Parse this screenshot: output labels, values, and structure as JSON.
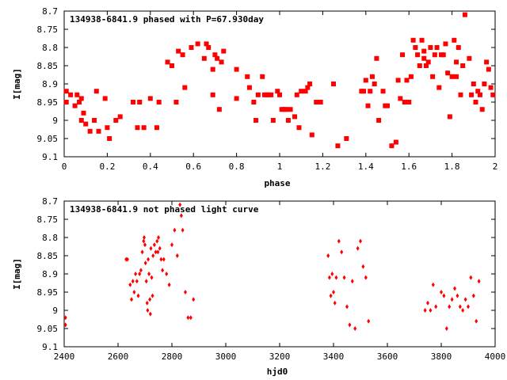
{
  "chart_data": [
    {
      "type": "scatter",
      "title": "134938-6841.9 phased with P=67.930day",
      "xlabel": "phase",
      "ylabel": "I[mag]",
      "xlim": [
        0,
        2
      ],
      "ylim": [
        9.1,
        8.7
      ],
      "y_inverted": true,
      "xticks": [
        "0",
        "0.2",
        "0.4",
        "0.6",
        "0.8",
        "1",
        "1.2",
        "1.4",
        "1.6",
        "1.8",
        "2"
      ],
      "yticks": [
        "8.7",
        "8.75",
        "8.8",
        "8.85",
        "8.9",
        "8.95",
        "9",
        "9.05",
        "9.1"
      ],
      "marker": "filled-square",
      "color": "#ff0000",
      "x": [
        0.01,
        0.01,
        0.03,
        0.05,
        0.06,
        0.07,
        0.08,
        0.08,
        0.09,
        0.1,
        0.12,
        0.14,
        0.15,
        0.16,
        0.19,
        0.2,
        0.21,
        0.24,
        0.26,
        0.32,
        0.34,
        0.35,
        0.37,
        0.4,
        0.43,
        0.44,
        0.48,
        0.5,
        0.52,
        0.53,
        0.55,
        0.56,
        0.59,
        0.62,
        0.65,
        0.66,
        0.67,
        0.69,
        0.69,
        0.7,
        0.71,
        0.72,
        0.73,
        0.74,
        0.8,
        0.8,
        0.85,
        0.86,
        0.88,
        0.89,
        0.9,
        0.92,
        0.93,
        0.94,
        0.95,
        0.96,
        0.97,
        0.99,
        1.0,
        1.01,
        1.02,
        1.03,
        1.04,
        1.05,
        1.07,
        1.08,
        1.09,
        1.1,
        1.12,
        1.13,
        1.14,
        1.15,
        1.17,
        1.19,
        1.25,
        1.27,
        1.31,
        1.38,
        1.39,
        1.4,
        1.41,
        1.42,
        1.43,
        1.44,
        1.45,
        1.46,
        1.48,
        1.49,
        1.5,
        1.52,
        1.54,
        1.55,
        1.56,
        1.57,
        1.58,
        1.59,
        1.6,
        1.61,
        1.62,
        1.63,
        1.64,
        1.65,
        1.66,
        1.67,
        1.67,
        1.68,
        1.69,
        1.7,
        1.71,
        1.72,
        1.73,
        1.74,
        1.75,
        1.76,
        1.77,
        1.78,
        1.79,
        1.8,
        1.81,
        1.82,
        1.82,
        1.83,
        1.84,
        1.85,
        1.86,
        1.88,
        1.89,
        1.9,
        1.91,
        1.92,
        1.93,
        1.94,
        1.95,
        1.96,
        1.97,
        1.98,
        1.99
      ],
      "y": [
        8.92,
        8.95,
        8.93,
        8.96,
        8.93,
        8.95,
        8.94,
        9.0,
        8.98,
        9.01,
        9.03,
        9.0,
        8.92,
        9.03,
        8.94,
        9.02,
        9.05,
        9.0,
        8.99,
        8.95,
        9.02,
        8.95,
        9.02,
        8.94,
        9.02,
        8.95,
        8.84,
        8.85,
        8.95,
        8.81,
        8.82,
        8.91,
        8.8,
        8.79,
        8.83,
        8.79,
        8.8,
        8.86,
        8.93,
        8.82,
        8.83,
        8.97,
        8.84,
        8.81,
        8.86,
        8.94,
        8.88,
        8.91,
        8.95,
        9.0,
        8.93,
        8.88,
        8.93,
        8.93,
        8.93,
        8.93,
        9.0,
        8.92,
        8.93,
        8.97,
        8.97,
        8.97,
        9.0,
        8.97,
        8.99,
        8.93,
        9.02,
        8.92,
        8.92,
        8.91,
        8.9,
        9.04,
        8.95,
        8.95,
        8.9,
        9.07,
        9.05,
        8.92,
        8.92,
        8.89,
        8.96,
        8.92,
        8.88,
        8.9,
        8.83,
        9.0,
        8.92,
        8.96,
        8.96,
        9.07,
        9.06,
        8.89,
        8.94,
        8.82,
        8.95,
        8.89,
        8.95,
        8.88,
        8.78,
        8.8,
        8.82,
        8.85,
        8.78,
        8.81,
        8.83,
        8.85,
        8.84,
        8.8,
        8.88,
        8.82,
        8.8,
        8.91,
        8.82,
        8.82,
        8.79,
        8.87,
        8.99,
        8.88,
        8.78,
        8.84,
        8.88,
        8.8,
        8.93,
        8.85,
        8.71,
        8.83,
        8.93,
        8.9,
        8.95,
        8.92,
        8.93,
        8.97,
        8.9,
        8.84,
        8.86,
        8.91,
        8.93
      ]
    },
    {
      "type": "scatter",
      "title": "134938-6841.9 not phased light curve",
      "xlabel": "hjd0",
      "ylabel": "I[mag]",
      "xlim": [
        2400,
        4000
      ],
      "ylim": [
        9.1,
        8.7
      ],
      "y_inverted": true,
      "xticks": [
        "2400",
        "2600",
        "2800",
        "3000",
        "3200",
        "3400",
        "3600",
        "3800",
        "4000"
      ],
      "yticks": [
        "8.7",
        "8.75",
        "8.8",
        "8.85",
        "8.9",
        "8.95",
        "9",
        "9.05",
        "9.1"
      ],
      "marker": "small-diamond",
      "color": "#ff0000",
      "x": [
        2405,
        2405,
        2630,
        2635,
        2645,
        2650,
        2655,
        2660,
        2665,
        2670,
        2675,
        2680,
        2685,
        2690,
        2695,
        2697,
        2700,
        2702,
        2705,
        2708,
        2710,
        2712,
        2715,
        2718,
        2720,
        2722,
        2725,
        2728,
        2730,
        2735,
        2740,
        2745,
        2748,
        2750,
        2755,
        2760,
        2765,
        2770,
        2780,
        2790,
        2800,
        2810,
        2820,
        2830,
        2835,
        2840,
        2850,
        2860,
        2870,
        2880,
        3380,
        3385,
        3390,
        3395,
        3400,
        3405,
        3410,
        3420,
        3430,
        3440,
        3450,
        3460,
        3470,
        3480,
        3490,
        3500,
        3510,
        3520,
        3530,
        3740,
        3750,
        3760,
        3770,
        3780,
        3800,
        3810,
        3820,
        3830,
        3840,
        3850,
        3860,
        3870,
        3880,
        3890,
        3900,
        3910,
        3920,
        3930,
        3940
      ],
      "y": [
        9.02,
        9.04,
        8.86,
        8.86,
        8.93,
        8.97,
        8.92,
        8.95,
        8.9,
        8.92,
        8.96,
        8.9,
        8.89,
        8.84,
        8.81,
        8.8,
        8.82,
        8.87,
        8.92,
        8.98,
        9.0,
        8.86,
        8.9,
        8.97,
        9.01,
        8.83,
        8.91,
        8.96,
        8.85,
        8.82,
        8.84,
        8.81,
        8.84,
        8.8,
        8.83,
        8.86,
        8.89,
        8.86,
        8.9,
        8.93,
        8.82,
        8.78,
        8.85,
        8.71,
        8.74,
        8.78,
        8.95,
        9.02,
        9.02,
        8.97,
        8.85,
        8.91,
        8.96,
        8.9,
        8.95,
        8.98,
        8.91,
        8.81,
        8.84,
        8.91,
        8.99,
        9.04,
        8.92,
        9.05,
        8.83,
        8.81,
        8.88,
        8.91,
        9.03,
        9.0,
        8.98,
        9.0,
        8.93,
        8.99,
        8.95,
        8.96,
        9.05,
        8.99,
        8.97,
        8.94,
        8.96,
        8.99,
        9.0,
        8.97,
        8.99,
        8.91,
        8.96,
        9.03,
        8.92
      ]
    }
  ]
}
